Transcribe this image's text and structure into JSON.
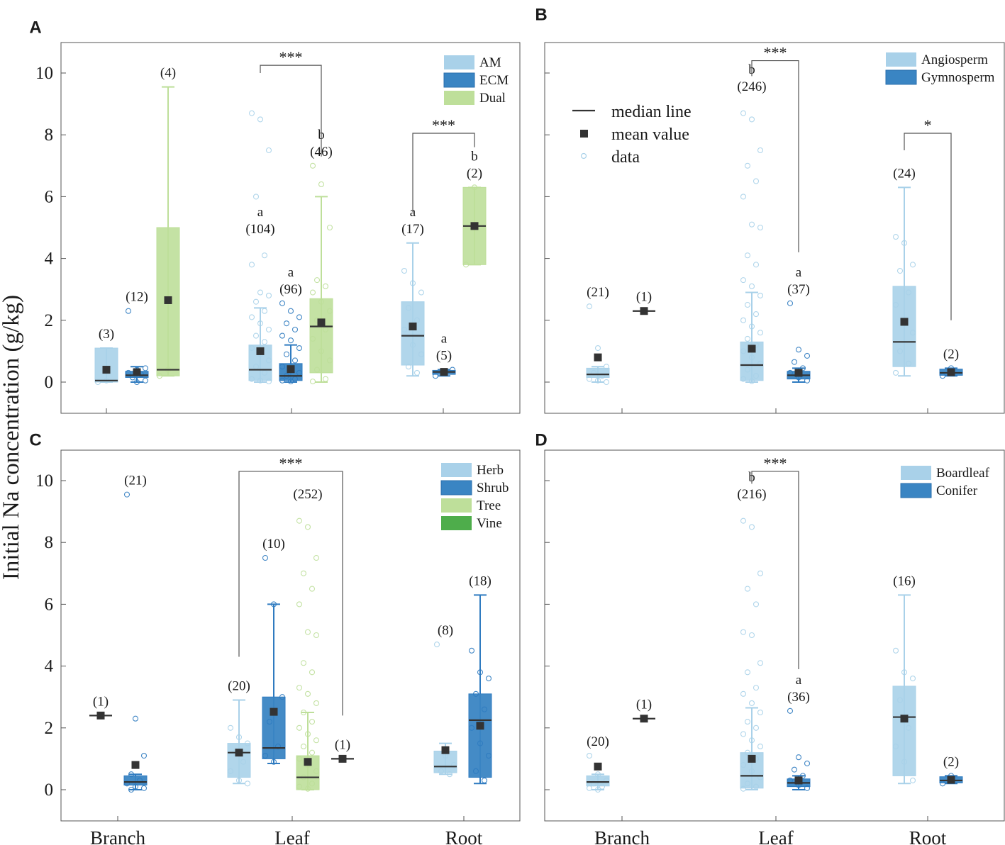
{
  "chart_data": {
    "type": "box",
    "ylabel": "Initial Na concentration (g/kg)",
    "ylim": [
      -0.9,
      11
    ],
    "yticks": [
      0,
      2,
      4,
      6,
      8,
      10
    ],
    "categories": [
      "Branch",
      "Leaf",
      "Root"
    ],
    "summary_legend": {
      "median": "median line",
      "mean": "mean value",
      "data": "data"
    },
    "panels": [
      {
        "label": "A",
        "legend": [
          {
            "name": "AM",
            "color": "#a9d1e9"
          },
          {
            "name": "ECM",
            "color": "#3a85c3"
          },
          {
            "name": "Dual",
            "color": "#bedf9a"
          }
        ],
        "boxes": [
          {
            "cat": "Branch",
            "group": "AM",
            "q1": 0.0,
            "median": 0.05,
            "q3": 1.1,
            "mean": 0.4,
            "wlo": 0.0,
            "whi": 1.1,
            "label": "(3)",
            "letter": "",
            "pts": [
              0.0,
              0.05
            ]
          },
          {
            "cat": "Branch",
            "group": "ECM",
            "q1": 0.15,
            "median": 0.22,
            "q3": 0.35,
            "mean": 0.32,
            "wlo": 0.0,
            "whi": 0.5,
            "label": "(12)",
            "letter": "",
            "pts": [
              2.3,
              0.0,
              0.05,
              0.15,
              0.25,
              0.3,
              0.4,
              0.45
            ]
          },
          {
            "cat": "Branch",
            "group": "Dual",
            "q1": 0.2,
            "median": 0.4,
            "q3": 5.0,
            "mean": 2.65,
            "wlo": 0.2,
            "whi": 9.55,
            "label": "(4)",
            "letter": "",
            "pts": [
              0.2,
              0.4
            ]
          },
          {
            "cat": "Leaf",
            "group": "AM",
            "q1": 0.05,
            "median": 0.4,
            "q3": 1.2,
            "mean": 1.0,
            "wlo": 0.0,
            "whi": 2.4,
            "label": "(104)",
            "letter": "a",
            "pts": [
              8.7,
              8.5,
              7.5,
              6.0,
              4.1,
              3.8,
              2.9,
              2.8,
              2.6,
              2.3,
              2.1,
              1.9,
              1.7,
              1.5,
              1.3,
              1.1,
              0.9,
              0.7,
              0.5,
              0.3,
              0.1,
              0.05,
              0.02
            ]
          },
          {
            "cat": "Leaf",
            "group": "ECM",
            "q1": 0.05,
            "median": 0.2,
            "q3": 0.6,
            "mean": 0.42,
            "wlo": 0.0,
            "whi": 1.2,
            "label": "(96)",
            "letter": "a",
            "pts": [
              2.55,
              2.3,
              2.1,
              1.9,
              1.7,
              1.5,
              1.35,
              1.1,
              0.9,
              0.7,
              0.5,
              0.4,
              0.3,
              0.2,
              0.1,
              0.05,
              0.02
            ]
          },
          {
            "cat": "Leaf",
            "group": "Dual",
            "q1": 0.3,
            "median": 1.8,
            "q3": 2.7,
            "mean": 1.93,
            "wlo": 0.0,
            "whi": 6.0,
            "label": "(46)",
            "letter": "b",
            "pts": [
              7.0,
              6.4,
              5.0,
              3.3,
              3.1,
              2.9,
              2.6,
              2.3,
              2.0,
              1.7,
              1.4,
              1.0,
              0.7,
              0.4,
              0.1,
              0.02
            ]
          },
          {
            "cat": "Root",
            "group": "AM",
            "q1": 0.55,
            "median": 1.5,
            "q3": 2.6,
            "mean": 1.8,
            "wlo": 0.2,
            "whi": 4.5,
            "label": "(17)",
            "letter": "a",
            "pts": [
              3.6,
              3.2,
              2.9,
              2.4,
              2.0,
              1.7,
              1.2,
              0.9,
              0.5,
              0.3
            ]
          },
          {
            "cat": "Root",
            "group": "ECM",
            "q1": 0.25,
            "median": 0.33,
            "q3": 0.38,
            "mean": 0.33,
            "wlo": 0.2,
            "whi": 0.4,
            "label": "(5)",
            "letter": "a",
            "pts": [
              0.2,
              0.3,
              0.4
            ]
          },
          {
            "cat": "Root",
            "group": "Dual",
            "q1": 3.8,
            "median": 5.05,
            "q3": 6.3,
            "mean": 5.05,
            "wlo": 3.8,
            "whi": 6.3,
            "label": "(2)",
            "letter": "b",
            "pts": [
              3.8,
              6.3
            ]
          }
        ],
        "sig": [
          {
            "cat": "Leaf",
            "from": "AM",
            "to": "Dual",
            "y": 10.25,
            "h1": 10.0,
            "h2": 7.3,
            "text": "***"
          },
          {
            "cat": "Root",
            "from": "AM",
            "to": "Dual",
            "y": 8.05,
            "h1": 5.5,
            "h2": 7.6,
            "text": "***"
          }
        ]
      },
      {
        "label": "B",
        "legend": [
          {
            "name": "Angiosperm",
            "color": "#a9d1e9"
          },
          {
            "name": "Gymnosperm",
            "color": "#3a85c3"
          }
        ],
        "boxes": [
          {
            "cat": "Branch",
            "group": "Angiosperm",
            "q1": 0.15,
            "median": 0.25,
            "q3": 0.45,
            "mean": 0.8,
            "wlo": 0.0,
            "whi": 0.5,
            "label": "(21)",
            "letter": "",
            "pts": [
              2.45,
              1.1,
              0.5,
              0.3,
              0.2,
              0.1,
              0.05,
              0.0
            ]
          },
          {
            "cat": "Branch",
            "group": "Gymnosperm",
            "q1": 2.3,
            "median": 2.3,
            "q3": 2.3,
            "mean": 2.3,
            "wlo": 2.3,
            "whi": 2.3,
            "label": "(1)",
            "letter": "",
            "pts": []
          },
          {
            "cat": "Leaf",
            "group": "Angiosperm",
            "q1": 0.05,
            "median": 0.55,
            "q3": 1.3,
            "mean": 1.08,
            "wlo": 0.0,
            "whi": 2.9,
            "label": "(246)",
            "letter": "b",
            "pts": [
              8.7,
              8.5,
              7.5,
              7.0,
              6.5,
              6.0,
              5.1,
              5.0,
              4.1,
              3.8,
              3.3,
              3.1,
              2.8,
              2.5,
              2.2,
              2.0,
              1.8,
              1.6,
              1.4,
              1.2,
              1.0,
              0.8,
              0.6,
              0.4,
              0.2,
              0.1,
              0.03
            ]
          },
          {
            "cat": "Leaf",
            "group": "Gymnosperm",
            "q1": 0.1,
            "median": 0.22,
            "q3": 0.35,
            "mean": 0.3,
            "wlo": 0.0,
            "whi": 0.45,
            "label": "(37)",
            "letter": "a",
            "pts": [
              2.55,
              1.05,
              0.85,
              0.65,
              0.45,
              0.3,
              0.15,
              0.05
            ]
          },
          {
            "cat": "Root",
            "group": "Angiosperm",
            "q1": 0.5,
            "median": 1.3,
            "q3": 3.1,
            "mean": 1.95,
            "wlo": 0.2,
            "whi": 6.3,
            "label": "(24)",
            "letter": "",
            "pts": [
              4.7,
              4.5,
              3.8,
              3.6,
              2.9,
              2.5,
              2.0,
              1.6,
              1.0,
              0.6,
              0.3
            ]
          },
          {
            "cat": "Root",
            "group": "Gymnosperm",
            "q1": 0.22,
            "median": 0.3,
            "q3": 0.42,
            "mean": 0.32,
            "wlo": 0.2,
            "whi": 0.45,
            "label": "(2)",
            "letter": "",
            "pts": [
              0.2,
              0.45
            ]
          }
        ],
        "sig": [
          {
            "cat": "Leaf",
            "from": "Angiosperm",
            "to": "Gymnosperm",
            "y": 10.4,
            "h1": 9.9,
            "h2": 4.2,
            "text": "***"
          },
          {
            "cat": "Root",
            "from": "Angiosperm",
            "to": "Gymnosperm",
            "y": 8.05,
            "h1": 7.5,
            "h2": 2.0,
            "text": "*"
          }
        ]
      },
      {
        "label": "C",
        "legend": [
          {
            "name": "Herb",
            "color": "#a9d1e9"
          },
          {
            "name": "Shrub",
            "color": "#3a85c3"
          },
          {
            "name": "Tree",
            "color": "#bedf9a"
          },
          {
            "name": "Vine",
            "color": "#4ead4b"
          }
        ],
        "boxes": [
          {
            "cat": "Branch",
            "group": "Herb",
            "q1": 2.4,
            "median": 2.4,
            "q3": 2.4,
            "mean": 2.4,
            "wlo": 2.4,
            "whi": 2.4,
            "label": "(1)",
            "letter": "",
            "pts": []
          },
          {
            "cat": "Branch",
            "group": "Shrub",
            "q1": 0.15,
            "median": 0.25,
            "q3": 0.45,
            "mean": 0.8,
            "wlo": 0.0,
            "whi": 0.5,
            "label": "(21)",
            "letter": "",
            "pts": [
              9.55,
              2.3,
              1.1,
              0.5,
              0.3,
              0.2,
              0.1,
              0.05,
              0.0
            ]
          },
          {
            "cat": "Leaf",
            "group": "Herb",
            "q1": 0.4,
            "median": 1.2,
            "q3": 1.5,
            "mean": 1.2,
            "wlo": 0.2,
            "whi": 2.9,
            "label": "(20)",
            "letter": "",
            "pts": [
              2.0,
              1.7,
              1.5,
              1.2,
              0.9,
              0.6,
              0.3,
              0.2
            ]
          },
          {
            "cat": "Leaf",
            "group": "Shrub",
            "q1": 1.0,
            "median": 1.35,
            "q3": 3.0,
            "mean": 2.52,
            "wlo": 0.85,
            "whi": 6.0,
            "label": "(10)",
            "letter": "",
            "pts": [
              7.5,
              6.0,
              3.0,
              2.2,
              1.4,
              1.1,
              0.9
            ]
          },
          {
            "cat": "Leaf",
            "group": "Tree",
            "q1": 0.0,
            "median": 0.4,
            "q3": 1.1,
            "mean": 0.9,
            "wlo": 0.0,
            "whi": 2.5,
            "label": "(252)",
            "letter": "",
            "pts": [
              8.7,
              8.5,
              7.5,
              7.0,
              6.5,
              6.0,
              5.1,
              5.0,
              4.1,
              3.8,
              3.3,
              3.1,
              2.8,
              2.5,
              2.2,
              2.0,
              1.8,
              1.6,
              1.4,
              1.2,
              1.0,
              0.8,
              0.6,
              0.4,
              0.2,
              0.1,
              0.03
            ]
          },
          {
            "cat": "Leaf",
            "group": "Vine",
            "q1": 1.0,
            "median": 1.0,
            "q3": 1.0,
            "mean": 1.0,
            "wlo": 1.0,
            "whi": 1.0,
            "label": "(1)",
            "letter": "",
            "pts": []
          },
          {
            "cat": "Root",
            "group": "Herb",
            "q1": 0.55,
            "median": 0.75,
            "q3": 1.25,
            "mean": 1.28,
            "wlo": 0.5,
            "whi": 1.5,
            "label": "(8)",
            "letter": "",
            "pts": [
              4.7,
              1.1,
              0.8,
              0.6,
              0.5
            ]
          },
          {
            "cat": "Root",
            "group": "Shrub",
            "q1": 0.4,
            "median": 2.25,
            "q3": 3.1,
            "mean": 2.07,
            "wlo": 0.2,
            "whi": 6.3,
            "label": "(18)",
            "letter": "",
            "pts": [
              4.5,
              3.8,
              3.6,
              3.1,
              2.6,
              2.0,
              1.5,
              1.1,
              0.6,
              0.3
            ]
          }
        ],
        "sig": [
          {
            "cat": "Leaf",
            "from": "Herb",
            "to": "Vine",
            "y": 10.3,
            "h1": 4.3,
            "h2": 2.4,
            "text": "***"
          }
        ]
      },
      {
        "label": "D",
        "legend": [
          {
            "name": "Boardleaf",
            "color": "#a9d1e9"
          },
          {
            "name": "Conifer",
            "color": "#3a85c3"
          }
        ],
        "boxes": [
          {
            "cat": "Branch",
            "group": "Boardleaf",
            "q1": 0.12,
            "median": 0.25,
            "q3": 0.45,
            "mean": 0.75,
            "wlo": 0.0,
            "whi": 0.5,
            "label": "(20)",
            "letter": "",
            "pts": [
              1.1,
              0.5,
              0.3,
              0.2,
              0.1,
              0.05,
              0.0
            ]
          },
          {
            "cat": "Branch",
            "group": "Conifer",
            "q1": 2.3,
            "median": 2.3,
            "q3": 2.3,
            "mean": 2.3,
            "wlo": 2.3,
            "whi": 2.3,
            "label": "(1)",
            "letter": "",
            "pts": []
          },
          {
            "cat": "Leaf",
            "group": "Boardleaf",
            "q1": 0.05,
            "median": 0.45,
            "q3": 1.2,
            "mean": 1.0,
            "wlo": 0.0,
            "whi": 2.65,
            "label": "(216)",
            "letter": "b",
            "pts": [
              8.7,
              8.5,
              7.0,
              6.5,
              6.0,
              5.1,
              5.0,
              4.1,
              3.8,
              3.3,
              3.1,
              2.8,
              2.5,
              2.2,
              2.0,
              1.8,
              1.6,
              1.4,
              1.2,
              1.0,
              0.8,
              0.6,
              0.4,
              0.2,
              0.1,
              0.03
            ]
          },
          {
            "cat": "Leaf",
            "group": "Conifer",
            "q1": 0.1,
            "median": 0.22,
            "q3": 0.35,
            "mean": 0.3,
            "wlo": 0.0,
            "whi": 0.45,
            "label": "(36)",
            "letter": "a",
            "pts": [
              2.55,
              1.05,
              0.85,
              0.65,
              0.45,
              0.3,
              0.15,
              0.05
            ]
          },
          {
            "cat": "Root",
            "group": "Boardleaf",
            "q1": 0.45,
            "median": 2.35,
            "q3": 3.35,
            "mean": 2.3,
            "wlo": 0.2,
            "whi": 6.3,
            "label": "(16)",
            "letter": "",
            "pts": [
              4.5,
              3.8,
              3.6,
              2.9,
              2.0,
              1.4,
              0.9,
              0.3
            ]
          },
          {
            "cat": "Root",
            "group": "Conifer",
            "q1": 0.22,
            "median": 0.3,
            "q3": 0.42,
            "mean": 0.32,
            "wlo": 0.2,
            "whi": 0.45,
            "label": "(2)",
            "letter": "",
            "pts": [
              0.2,
              0.45
            ]
          }
        ],
        "sig": [
          {
            "cat": "Leaf",
            "from": "Boardleaf",
            "to": "Conifer",
            "y": 10.3,
            "h1": 9.9,
            "h2": 3.9,
            "text": "***"
          }
        ]
      }
    ]
  }
}
